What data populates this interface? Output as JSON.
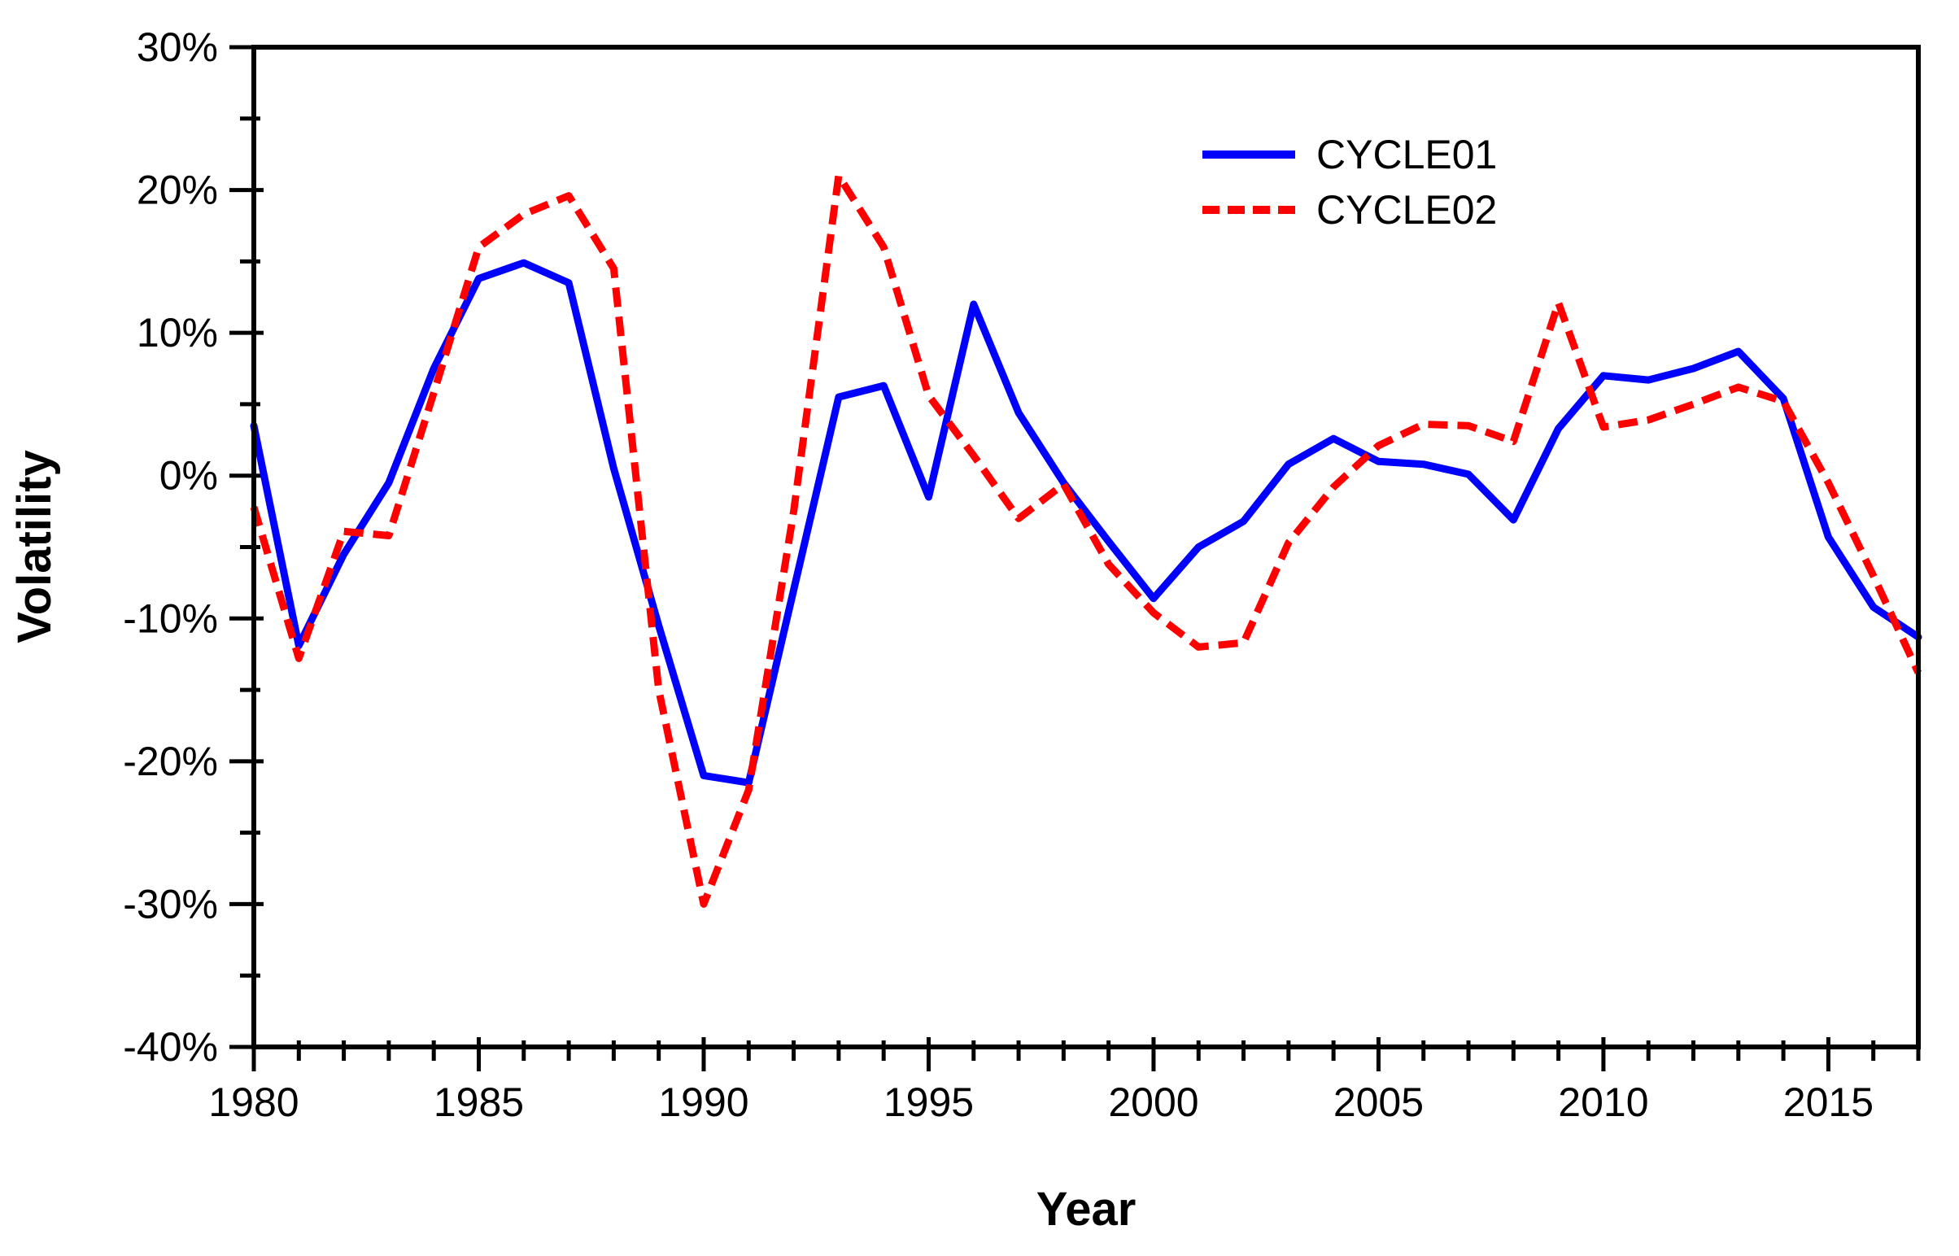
{
  "chart_data": {
    "type": "line",
    "title": "",
    "xlabel": "Year",
    "ylabel": "Volatility",
    "x_range": [
      1980,
      2017
    ],
    "y_range": [
      -40,
      30
    ],
    "x_major_ticks": [
      1980,
      1985,
      1990,
      1995,
      2000,
      2005,
      2010,
      2015
    ],
    "x_tick_labels": [
      "1980",
      "1985",
      "1990",
      "1995",
      "2000",
      "2005",
      "2010",
      "2015"
    ],
    "x_minor_step": 1,
    "y_major_ticks": [
      30,
      20,
      10,
      0,
      -10,
      -20,
      -30,
      -40
    ],
    "y_tick_labels": [
      "30%",
      "20%",
      "10%",
      "0%",
      "-10%",
      "-20%",
      "-30%",
      "-40%"
    ],
    "y_minor_step": 5,
    "grid": false,
    "legend_position": "upper-right-inside",
    "frame": "full-box",
    "x": [
      1980,
      1981,
      1982,
      1983,
      1984,
      1985,
      1986,
      1987,
      1988,
      1989,
      1990,
      1991,
      1992,
      1993,
      1994,
      1995,
      1996,
      1997,
      1998,
      1999,
      2000,
      2001,
      2002,
      2003,
      2004,
      2005,
      2006,
      2007,
      2008,
      2009,
      2010,
      2011,
      2012,
      2013,
      2014,
      2015,
      2016,
      2017
    ],
    "series": [
      {
        "name": "CYCLE01",
        "color": "#0000ff",
        "style": "solid",
        "values": [
          3.5,
          -11.9,
          -5.5,
          -0.5,
          7.5,
          13.8,
          14.9,
          13.5,
          0.5,
          -10.5,
          -21.0,
          -21.5,
          -8.0,
          5.5,
          6.3,
          -1.5,
          12.0,
          4.4,
          -0.5,
          -4.6,
          -8.6,
          -5.0,
          -3.2,
          0.8,
          2.6,
          1.0,
          0.8,
          0.1,
          -3.1,
          3.3,
          7.0,
          6.7,
          7.5,
          8.7,
          5.4,
          -4.3,
          -9.2,
          -11.3
        ]
      },
      {
        "name": "CYCLE02",
        "color": "#ff0000",
        "style": "dashed",
        "values": [
          -2.2,
          -12.8,
          -3.9,
          -4.2,
          5.8,
          16.0,
          18.3,
          19.6,
          14.5,
          -15.0,
          -30.0,
          -22.0,
          -2.5,
          21.0,
          16.0,
          5.6,
          1.4,
          -3.0,
          -0.6,
          -6.2,
          -9.6,
          -12.0,
          -11.7,
          -4.7,
          -0.8,
          2.1,
          3.6,
          3.5,
          2.4,
          12.1,
          3.4,
          3.9,
          5.0,
          6.2,
          5.2,
          -0.5,
          -7.0,
          -13.8
        ]
      }
    ]
  },
  "colors": {
    "axis": "#000000",
    "background": "#ffffff",
    "text": "#000000",
    "series1": "#0000ff",
    "series2": "#ff0000"
  }
}
